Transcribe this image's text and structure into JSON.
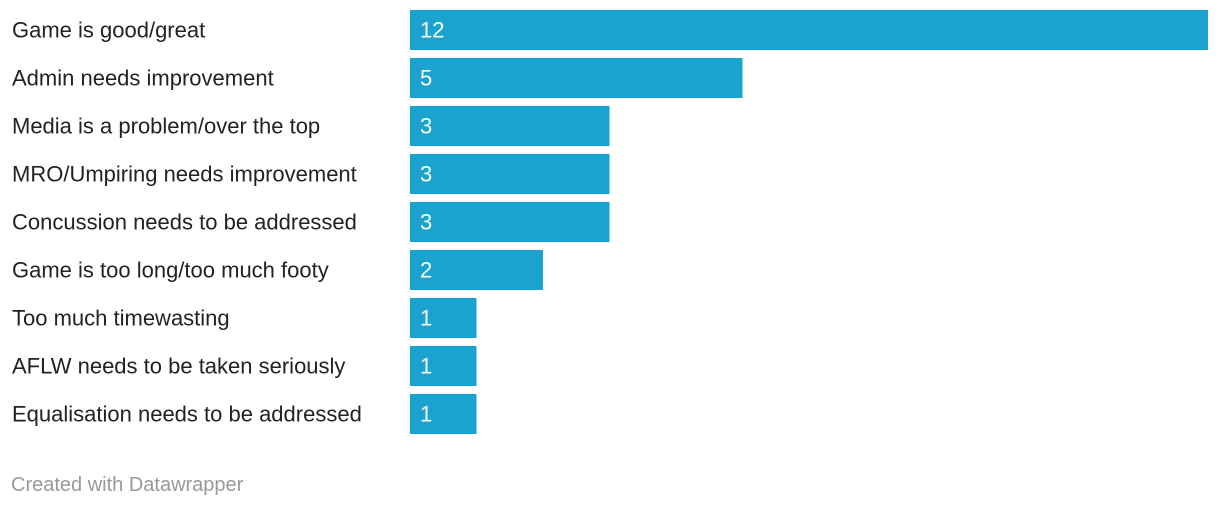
{
  "chart_data": {
    "type": "bar",
    "orientation": "horizontal",
    "categories": [
      "Game is good/great",
      "Admin needs improvement",
      "Media is a problem/over the top",
      "MRO/Umpiring needs improvement",
      "Concussion needs to be addressed",
      "Game is too long/too much footy",
      "Too much timewasting",
      "AFLW needs to be taken seriously",
      "Equalisation needs to be addressed"
    ],
    "values": [
      12,
      5,
      3,
      3,
      3,
      2,
      1,
      1,
      1
    ],
    "xlim": [
      0,
      12
    ],
    "grid": false,
    "bar_color": "#1ba3cf",
    "label_color": "#222222",
    "value_label_color": "#ffffff"
  },
  "footer": {
    "credit": "Created with Datawrapper"
  }
}
